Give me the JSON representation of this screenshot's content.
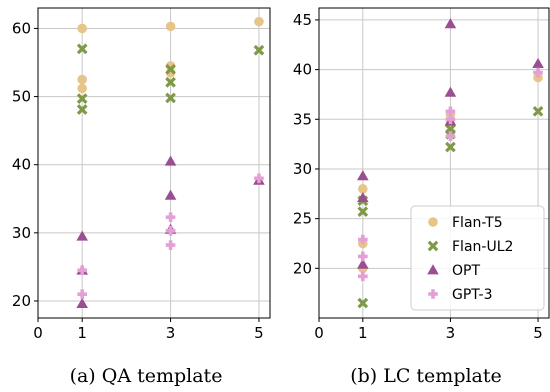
{
  "chart_data": [
    {
      "type": "scatter",
      "caption": "(a) QA template",
      "xlim": [
        0,
        5.25
      ],
      "ylim": [
        17.5,
        63.0
      ],
      "xticks": [
        0,
        1,
        3,
        5
      ],
      "yticks": [
        20,
        30,
        40,
        50,
        60
      ],
      "grid": true,
      "series": [
        {
          "name": "Flan-T5",
          "points": [
            [
              1,
              60.0
            ],
            [
              1,
              52.5
            ],
            [
              1,
              51.2
            ],
            [
              3,
              60.3
            ],
            [
              3,
              54.5
            ],
            [
              3,
              53.5
            ],
            [
              5,
              61.0
            ]
          ]
        },
        {
          "name": "Flan-UL2",
          "points": [
            [
              1,
              57.0
            ],
            [
              1,
              49.7
            ],
            [
              1,
              48.1
            ],
            [
              3,
              54.0
            ],
            [
              3,
              52.1
            ],
            [
              3,
              49.8
            ],
            [
              5,
              56.8
            ]
          ]
        },
        {
          "name": "OPT",
          "points": [
            [
              1,
              29.5
            ],
            [
              1,
              24.5
            ],
            [
              1,
              19.6
            ],
            [
              3,
              40.5
            ],
            [
              3,
              35.5
            ],
            [
              3,
              30.5
            ],
            [
              5,
              37.7
            ]
          ]
        },
        {
          "name": "GPT-3",
          "points": [
            [
              1,
              24.5
            ],
            [
              1,
              21.0
            ],
            [
              3,
              32.3
            ],
            [
              3,
              30.3
            ],
            [
              3,
              28.2
            ],
            [
              5,
              38.0
            ]
          ]
        }
      ]
    },
    {
      "type": "scatter",
      "caption": "(b) LC template",
      "xlim": [
        0,
        5.25
      ],
      "ylim": [
        15.0,
        46.2
      ],
      "xticks": [
        0,
        1,
        3,
        5
      ],
      "yticks": [
        20,
        25,
        30,
        35,
        40,
        45
      ],
      "grid": true,
      "legend_position": "lower-right",
      "series": [
        {
          "name": "Flan-T5",
          "points": [
            [
              1,
              28.0
            ],
            [
              1,
              22.5
            ],
            [
              1,
              20.0
            ],
            [
              3,
              35.5
            ],
            [
              3,
              34.5
            ],
            [
              5,
              39.2
            ]
          ]
        },
        {
          "name": "Flan-UL2",
          "points": [
            [
              1,
              26.8
            ],
            [
              1,
              25.7
            ],
            [
              1,
              16.5
            ],
            [
              3,
              34.0
            ],
            [
              3,
              33.5
            ],
            [
              3,
              32.2
            ],
            [
              5,
              35.8
            ]
          ]
        },
        {
          "name": "OPT",
          "points": [
            [
              1,
              29.3
            ],
            [
              1,
              27.1
            ],
            [
              1,
              20.4
            ],
            [
              3,
              44.6
            ],
            [
              3,
              37.7
            ],
            [
              3,
              34.8
            ],
            [
              5,
              40.6
            ]
          ]
        },
        {
          "name": "GPT-3",
          "points": [
            [
              1,
              22.9
            ],
            [
              1,
              21.2
            ],
            [
              1,
              19.2
            ],
            [
              3,
              35.8
            ],
            [
              3,
              35.0
            ],
            [
              3,
              33.3
            ],
            [
              5,
              39.7
            ]
          ]
        }
      ]
    }
  ],
  "legend": [
    {
      "name": "Flan-T5",
      "color": "#e6c58a",
      "marker": "circle"
    },
    {
      "name": "Flan-UL2",
      "color": "#7f9a47",
      "marker": "x"
    },
    {
      "name": "OPT",
      "color": "#9b4f92",
      "marker": "triangle"
    },
    {
      "name": "GPT-3",
      "color": "#e49fd6",
      "marker": "plus"
    }
  ]
}
